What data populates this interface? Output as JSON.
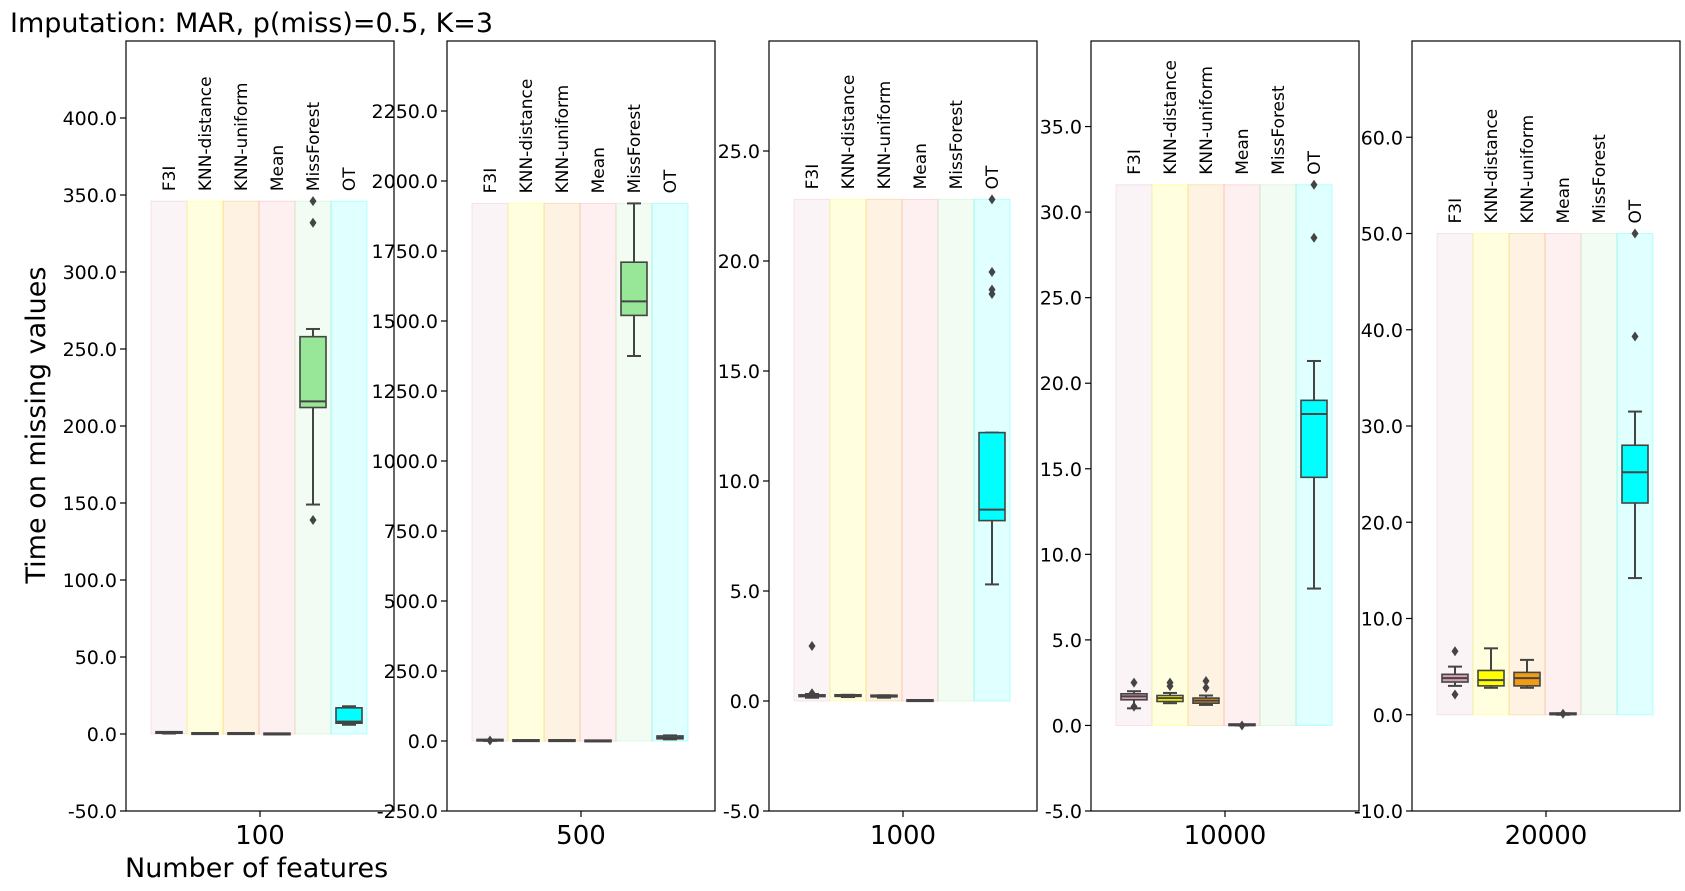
{
  "figure": {
    "title": "Imputation: MAR, p(miss)=0.5, K=3",
    "ylabel": "Time on missing values",
    "xlabel": "Number of features"
  },
  "methods": [
    "F3I",
    "KNN-distance",
    "KNN-uniform",
    "Mean",
    "MissForest",
    "OT"
  ],
  "colors": {
    "F3I": "#d8a1b1",
    "KNN-distance": "#ffff00",
    "KNN-uniform": "#f39c12",
    "Mean": "#fa8080",
    "MissForest": "#98e698",
    "OT": "#00ffff"
  },
  "chart_data": [
    {
      "type": "box",
      "category": "100",
      "ylim": [
        -50,
        450
      ],
      "yticks": [
        -50,
        0,
        50,
        100,
        150,
        200,
        250,
        300,
        350,
        400
      ],
      "ytick_labels": [
        "-50.0",
        "0.0",
        "50.0",
        "100.0",
        "150.0",
        "200.0",
        "250.0",
        "300.0",
        "350.0",
        "400.0"
      ],
      "band_top": 346,
      "boxes": [
        {
          "method": "F3I",
          "q1": 0.6,
          "median": 0.8,
          "q3": 1.0,
          "whisker_low": 0.3,
          "whisker_high": 1.2,
          "outliers": []
        },
        {
          "method": "KNN-distance",
          "q1": 0.1,
          "median": 0.2,
          "q3": 0.3,
          "whisker_low": 0.05,
          "whisker_high": 0.4,
          "outliers": []
        },
        {
          "method": "KNN-uniform",
          "q1": 0.1,
          "median": 0.2,
          "q3": 0.3,
          "whisker_low": 0.05,
          "whisker_high": 0.4,
          "outliers": []
        },
        {
          "method": "Mean",
          "q1": 0.02,
          "median": 0.03,
          "q3": 0.05,
          "whisker_low": 0.01,
          "whisker_high": 0.06,
          "outliers": []
        },
        {
          "method": "MissForest",
          "q1": 212,
          "median": 216,
          "q3": 258,
          "whisker_low": 149,
          "whisker_high": 263,
          "outliers": [
            139,
            332,
            346
          ]
        },
        {
          "method": "OT",
          "q1": 7,
          "median": 8,
          "q3": 17,
          "whisker_low": 6,
          "whisker_high": 18,
          "outliers": []
        }
      ]
    },
    {
      "type": "box",
      "category": "500",
      "ylim": [
        -250,
        2500
      ],
      "yticks": [
        -250,
        0,
        250,
        500,
        750,
        1000,
        1250,
        1500,
        1750,
        2000,
        2250
      ],
      "ytick_labels": [
        "-250.0",
        "0.0",
        "250.0",
        "500.0",
        "750.0",
        "1000.0",
        "1250.0",
        "1500.0",
        "1750.0",
        "2000.0",
        "2250.0"
      ],
      "band_top": 1920,
      "boxes": [
        {
          "method": "F3I",
          "q1": 1,
          "median": 2,
          "q3": 3,
          "whisker_low": 0.5,
          "whisker_high": 4,
          "outliers": [
            2
          ]
        },
        {
          "method": "KNN-distance",
          "q1": 0.5,
          "median": 1,
          "q3": 1.5,
          "whisker_low": 0.3,
          "whisker_high": 2,
          "outliers": []
        },
        {
          "method": "KNN-uniform",
          "q1": 0.5,
          "median": 1,
          "q3": 1.5,
          "whisker_low": 0.3,
          "whisker_high": 2,
          "outliers": []
        },
        {
          "method": "Mean",
          "q1": 0.1,
          "median": 0.2,
          "q3": 0.3,
          "whisker_low": 0.05,
          "whisker_high": 0.4,
          "outliers": []
        },
        {
          "method": "MissForest",
          "q1": 1520,
          "median": 1570,
          "q3": 1710,
          "whisker_low": 1375,
          "whisker_high": 1920,
          "outliers": []
        },
        {
          "method": "OT",
          "q1": 8,
          "median": 12,
          "q3": 18,
          "whisker_low": 6,
          "whisker_high": 20,
          "outliers": []
        }
      ]
    },
    {
      "type": "box",
      "category": "1000",
      "ylim": [
        -5,
        30
      ],
      "yticks": [
        -5,
        0,
        5,
        10,
        15,
        20,
        25
      ],
      "ytick_labels": [
        "-5.0",
        "0.0",
        "5.0",
        "10.0",
        "15.0",
        "20.0",
        "25.0"
      ],
      "band_top": 22.8,
      "boxes": [
        {
          "method": "F3I",
          "q1": 0.2,
          "median": 0.24,
          "q3": 0.28,
          "whisker_low": 0.15,
          "whisker_high": 0.32,
          "outliers": [
            2.5,
            0.35
          ]
        },
        {
          "method": "KNN-distance",
          "q1": 0.2,
          "median": 0.22,
          "q3": 0.25,
          "whisker_low": 0.18,
          "whisker_high": 0.28,
          "outliers": []
        },
        {
          "method": "KNN-uniform",
          "q1": 0.18,
          "median": 0.2,
          "q3": 0.23,
          "whisker_low": 0.15,
          "whisker_high": 0.26,
          "outliers": []
        },
        {
          "method": "Mean",
          "q1": 0.0,
          "median": 0.01,
          "q3": 0.02,
          "whisker_low": 0.0,
          "whisker_high": 0.03,
          "outliers": []
        },
        {
          "method": "MissForest",
          "q1": null,
          "median": null,
          "q3": null,
          "whisker_low": null,
          "whisker_high": null,
          "outliers": []
        },
        {
          "method": "OT",
          "q1": 8.2,
          "median": 8.7,
          "q3": 12.2,
          "whisker_low": 5.3,
          "whisker_high": 12.2,
          "outliers": [
            18.5,
            18.7,
            19.5,
            22.8
          ]
        }
      ]
    },
    {
      "type": "box",
      "category": "10000",
      "ylim": [
        -5,
        40
      ],
      "yticks": [
        -5,
        0,
        5,
        10,
        15,
        20,
        25,
        30,
        35
      ],
      "ytick_labels": [
        "-5.0",
        "0.0",
        "5.0",
        "10.0",
        "15.0",
        "20.0",
        "25.0",
        "30.0",
        "35.0"
      ],
      "band_top": 31.6,
      "boxes": [
        {
          "method": "F3I",
          "q1": 1.5,
          "median": 1.7,
          "q3": 1.85,
          "whisker_low": 1.0,
          "whisker_high": 2.0,
          "outliers": [
            2.5,
            1.1
          ]
        },
        {
          "method": "KNN-distance",
          "q1": 1.4,
          "median": 1.6,
          "q3": 1.75,
          "whisker_low": 1.3,
          "whisker_high": 1.9,
          "outliers": [
            2.3,
            2.5
          ]
        },
        {
          "method": "KNN-uniform",
          "q1": 1.3,
          "median": 1.45,
          "q3": 1.6,
          "whisker_low": 1.2,
          "whisker_high": 1.75,
          "outliers": [
            2.2,
            2.6
          ]
        },
        {
          "method": "Mean",
          "q1": 0.0,
          "median": 0.02,
          "q3": 0.04,
          "whisker_low": 0.0,
          "whisker_high": 0.05,
          "outliers": [
            0.0
          ]
        },
        {
          "method": "MissForest",
          "q1": null,
          "median": null,
          "q3": null,
          "whisker_low": null,
          "whisker_high": null,
          "outliers": []
        },
        {
          "method": "OT",
          "q1": 14.5,
          "median": 18.2,
          "q3": 19.0,
          "whisker_low": 8.0,
          "whisker_high": 21.3,
          "outliers": [
            28.5,
            31.6
          ]
        }
      ]
    },
    {
      "type": "box",
      "category": "20000",
      "ylim": [
        -10,
        70
      ],
      "yticks": [
        -10,
        0,
        10,
        20,
        30,
        40,
        50,
        60
      ],
      "ytick_labels": [
        "-10.0",
        "0.0",
        "10.0",
        "20.0",
        "30.0",
        "40.0",
        "50.0",
        "60.0"
      ],
      "band_top": 50,
      "boxes": [
        {
          "method": "F3I",
          "q1": 3.4,
          "median": 3.8,
          "q3": 4.2,
          "whisker_low": 3.0,
          "whisker_high": 5.0,
          "outliers": [
            6.6,
            2.1
          ]
        },
        {
          "method": "KNN-distance",
          "q1": 3.0,
          "median": 3.6,
          "q3": 4.6,
          "whisker_low": 2.8,
          "whisker_high": 6.9,
          "outliers": []
        },
        {
          "method": "KNN-uniform",
          "q1": 3.0,
          "median": 3.8,
          "q3": 4.4,
          "whisker_low": 2.8,
          "whisker_high": 5.7,
          "outliers": []
        },
        {
          "method": "Mean",
          "q1": 0.0,
          "median": 0.05,
          "q3": 0.1,
          "whisker_low": 0.0,
          "whisker_high": 0.15,
          "outliers": [
            0.1
          ]
        },
        {
          "method": "MissForest",
          "q1": null,
          "median": null,
          "q3": null,
          "whisker_low": null,
          "whisker_high": null,
          "outliers": []
        },
        {
          "method": "OT",
          "q1": 22.0,
          "median": 25.2,
          "q3": 28.0,
          "whisker_low": 14.2,
          "whisker_high": 31.5,
          "outliers": [
            39.3,
            50.0
          ]
        }
      ]
    }
  ]
}
